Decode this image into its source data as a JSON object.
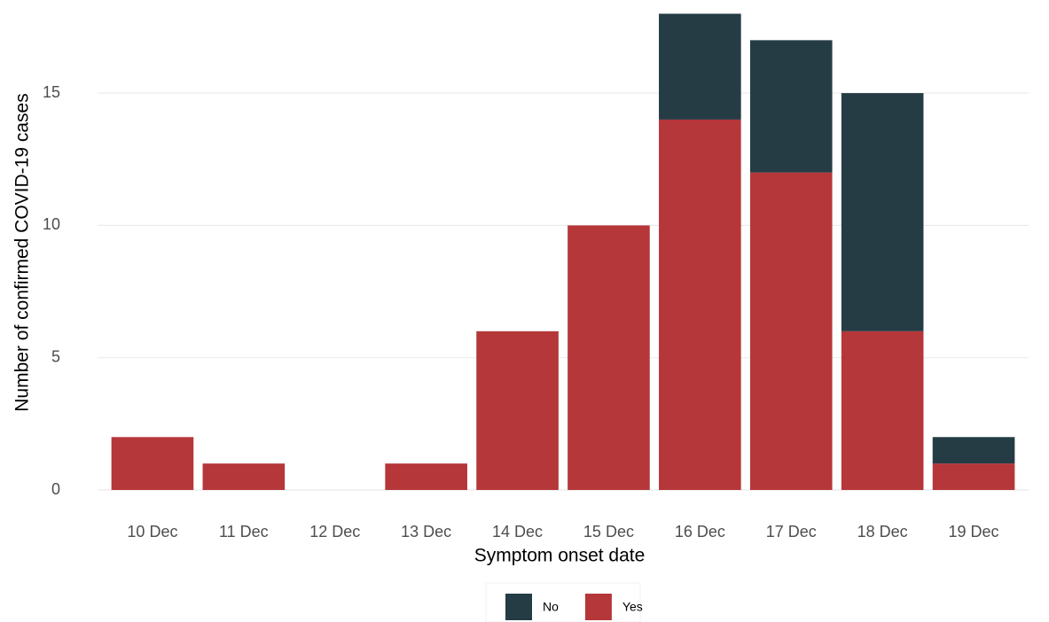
{
  "chart_data": {
    "type": "stacked_bar",
    "x_label": "Symptom onset date",
    "y_label": "Number of confirmed COVID-19 cases",
    "categories": [
      "10 Dec",
      "11 Dec",
      "12 Dec",
      "13 Dec",
      "14 Dec",
      "15 Dec",
      "16 Dec",
      "17 Dec",
      "18 Dec",
      "19 Dec"
    ],
    "series": [
      {
        "name": "Yes",
        "color": "#b5373a",
        "values": [
          2,
          1,
          0,
          1,
          6,
          10,
          14,
          12,
          6,
          1
        ]
      },
      {
        "name": "No",
        "color": "#253c45",
        "values": [
          0,
          0,
          0,
          0,
          0,
          0,
          4,
          5,
          9,
          1
        ]
      }
    ],
    "ylim": [
      0,
      18
    ],
    "yticks": [
      0,
      5,
      10,
      15
    ],
    "grid": true,
    "legend_position": "bottom"
  }
}
